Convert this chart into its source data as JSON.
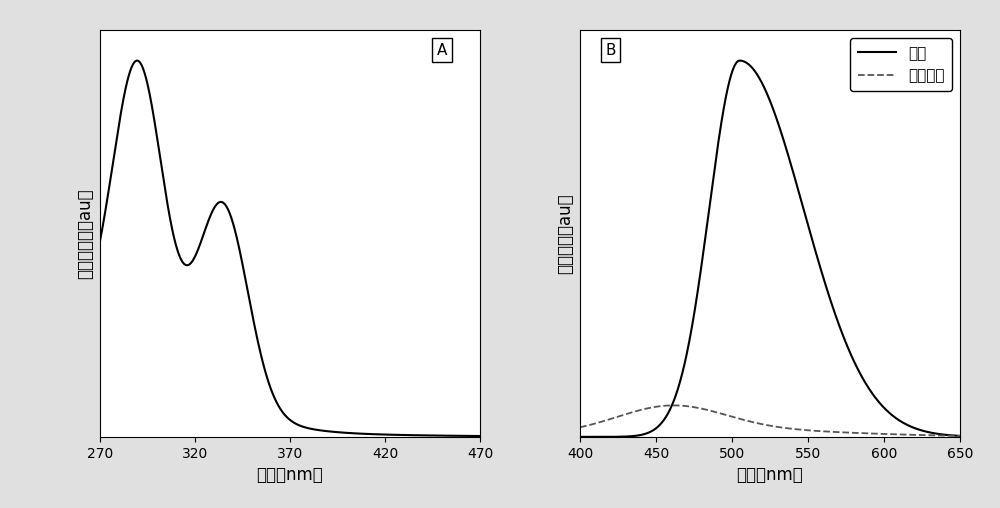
{
  "panel_A": {
    "xlabel": "波长（nm）",
    "ylabel": "归一化吸收（au）",
    "label": "A",
    "xlim": [
      270,
      470
    ],
    "xticks": [
      270,
      320,
      370,
      420,
      470
    ],
    "line_color": "#000000",
    "line_width": 1.5
  },
  "panel_B": {
    "xlabel": "波长（nm）",
    "ylabel": "荧光强度（au）",
    "label": "B",
    "xlim": [
      400,
      650
    ],
    "xticks": [
      400,
      450,
      500,
      550,
      600,
      650
    ],
    "solid_label": "固态",
    "dashed_label": "水溶液态",
    "solid_color": "#000000",
    "dashed_color": "#555555",
    "solid_lw": 1.5,
    "dashed_lw": 1.3
  },
  "background_color": "#e0e0e0",
  "axes_background": "#ffffff",
  "fontsize_label": 12,
  "fontsize_tick": 10,
  "fontsize_legend": 11,
  "fontsize_panel_label": 11
}
